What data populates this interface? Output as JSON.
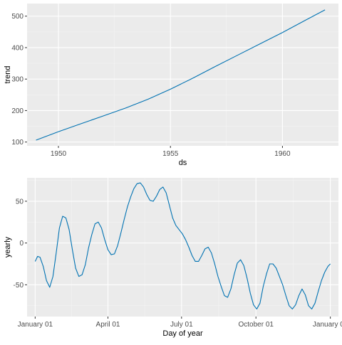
{
  "chart_data": [
    {
      "type": "line",
      "title": "",
      "xlabel": "ds",
      "ylabel": "trend",
      "xlim": [
        1948.6,
        1962.5
      ],
      "ylim": [
        88,
        540
      ],
      "x_ticks": [
        1950,
        1955,
        1960
      ],
      "x_tick_labels": [
        "1950",
        "1955",
        "1960"
      ],
      "y_ticks": [
        100,
        200,
        300,
        400,
        500
      ],
      "y_tick_labels": [
        "100",
        "200",
        "300",
        "400",
        "500"
      ],
      "grid": true,
      "background": "#ebebeb",
      "series": [
        {
          "color": "#0072b2",
          "x": [
            1949.0,
            1950.0,
            1951.0,
            1952.0,
            1953.0,
            1954.0,
            1955.0,
            1956.0,
            1957.0,
            1958.0,
            1959.0,
            1960.0,
            1961.0,
            1961.9
          ],
          "y": [
            106,
            133,
            158,
            183,
            208,
            236,
            268,
            303,
            340,
            376,
            412,
            448,
            486,
            520
          ]
        }
      ]
    },
    {
      "type": "line",
      "title": "",
      "xlabel": "Day of year",
      "ylabel": "yearly",
      "xlim": [
        -10,
        375
      ],
      "ylim": [
        -88,
        78
      ],
      "x_ticks": [
        0,
        90,
        181,
        273,
        365
      ],
      "x_tick_labels": [
        "January 01",
        "April 01",
        "July 01",
        "October 01",
        "January 01"
      ],
      "y_ticks": [
        -50,
        0,
        50
      ],
      "y_tick_labels": [
        "-50",
        "0",
        "50"
      ],
      "grid": true,
      "background": "#ebebeb",
      "series": [
        {
          "color": "#0072b2",
          "x": [
            0,
            3,
            6,
            10,
            14,
            18,
            22,
            26,
            30,
            34,
            38,
            42,
            46,
            50,
            54,
            58,
            62,
            66,
            70,
            74,
            78,
            82,
            86,
            90,
            94,
            98,
            102,
            106,
            110,
            114,
            118,
            122,
            126,
            130,
            134,
            138,
            142,
            146,
            150,
            154,
            158,
            162,
            166,
            170,
            174,
            178,
            182,
            186,
            190,
            194,
            198,
            202,
            206,
            210,
            214,
            218,
            222,
            226,
            230,
            234,
            238,
            242,
            246,
            250,
            254,
            258,
            262,
            266,
            270,
            274,
            278,
            282,
            286,
            290,
            294,
            298,
            302,
            306,
            310,
            314,
            318,
            322,
            326,
            330,
            334,
            338,
            342,
            346,
            350,
            354,
            358,
            362,
            365
          ],
          "y": [
            -22,
            -16,
            -17,
            -28,
            -45,
            -53,
            -40,
            -12,
            18,
            32,
            30,
            16,
            -8,
            -30,
            -40,
            -38,
            -26,
            -6,
            10,
            23,
            25,
            18,
            4,
            -8,
            -14,
            -13,
            -3,
            12,
            28,
            43,
            55,
            65,
            71,
            72,
            67,
            58,
            51,
            50,
            56,
            64,
            67,
            60,
            45,
            30,
            21,
            16,
            11,
            4,
            -5,
            -15,
            -22,
            -22,
            -15,
            -7,
            -5,
            -12,
            -25,
            -40,
            -52,
            -63,
            -65,
            -55,
            -38,
            -24,
            -20,
            -27,
            -42,
            -60,
            -74,
            -79,
            -72,
            -52,
            -37,
            -25,
            -25,
            -30,
            -40,
            -50,
            -63,
            -75,
            -79,
            -74,
            -63,
            -55,
            -62,
            -75,
            -79,
            -72,
            -58,
            -45,
            -35,
            -28,
            -25
          ]
        }
      ]
    }
  ]
}
